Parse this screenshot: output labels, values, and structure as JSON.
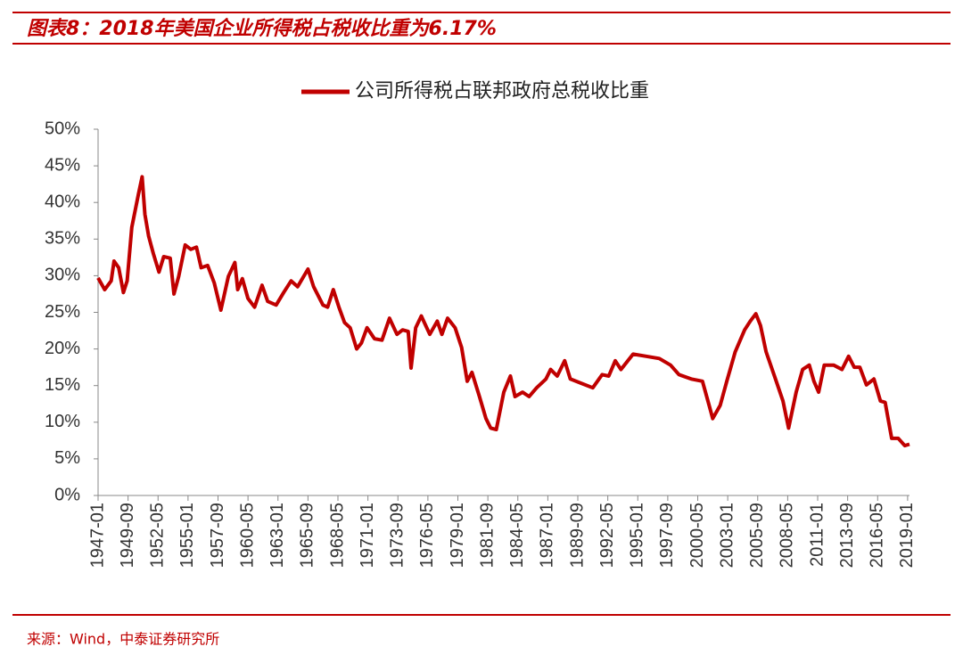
{
  "chart_data": {
    "type": "line",
    "title": "图表8：2018年美国企业所得税占税收比重为6.17%",
    "source": "来源：Wind，中泰证券研究所",
    "legend": "top",
    "x": [
      "1947-01",
      "1947-08",
      "1948-03",
      "1948-06",
      "1948-11",
      "1949-04",
      "1949-08",
      "1950-01",
      "1950-08",
      "1950-12",
      "1951-03",
      "1951-07",
      "1951-12",
      "1952-06",
      "1952-11",
      "1953-06",
      "1953-10",
      "1954-03",
      "1954-10",
      "1955-04",
      "1955-10",
      "1956-03",
      "1956-10",
      "1957-05",
      "1957-12",
      "1958-08",
      "1959-03",
      "1959-06",
      "1959-11",
      "1960-05",
      "1960-12",
      "1961-08",
      "1962-02",
      "1962-11",
      "1963-07",
      "1964-03",
      "1964-10",
      "1965-09",
      "1966-03",
      "1967-01",
      "1967-06",
      "1967-12",
      "1968-06",
      "1968-12",
      "1969-06",
      "1970-01",
      "1970-06",
      "1970-12",
      "1971-08",
      "1972-04",
      "1972-12",
      "1973-08",
      "1974-02",
      "1974-08",
      "1974-11",
      "1975-04",
      "1975-10",
      "1976-07",
      "1977-03",
      "1977-08",
      "1978-02",
      "1978-10",
      "1979-05",
      "1979-11",
      "1980-04",
      "1980-12",
      "1981-07",
      "1981-12",
      "1982-06",
      "1983-02",
      "1983-09",
      "1984-02",
      "1984-10",
      "1985-05",
      "1986-01",
      "1986-11",
      "1987-04",
      "1987-11",
      "1988-07",
      "1989-01",
      "1990-01",
      "1991-01",
      "1991-11",
      "1992-06",
      "1993-01",
      "1993-07",
      "1994-08",
      "1995-10",
      "1996-12",
      "1997-12",
      "1998-09",
      "1999-10",
      "2000-10",
      "2001-06",
      "2001-09",
      "2002-05",
      "2002-12",
      "2003-09",
      "2004-07",
      "2005-01",
      "2005-07",
      "2005-12",
      "2006-06",
      "2007-04",
      "2007-12",
      "2008-06",
      "2009-02",
      "2009-09",
      "2010-04",
      "2010-09",
      "2011-02",
      "2011-08",
      "2012-06",
      "2013-03",
      "2013-10",
      "2014-04",
      "2014-10",
      "2015-05",
      "2016-01",
      "2016-08",
      "2017-01",
      "2017-08",
      "2018-03",
      "2018-10",
      "2019-03"
    ],
    "series": [
      {
        "name": "公司所得税占联邦政府总税收比重",
        "color": "#c00000",
        "values": [
          29.7,
          28.1,
          29.3,
          32,
          31.1,
          27.7,
          29.3,
          36.6,
          41.1,
          43.5,
          38.4,
          35.4,
          33,
          30.5,
          32.6,
          32.4,
          27.5,
          29.9,
          34.2,
          33.6,
          33.9,
          31.1,
          31.4,
          29,
          25.3,
          29.9,
          31.8,
          28.1,
          29.6,
          26.9,
          25.7,
          28.7,
          26.5,
          26,
          27.7,
          29.3,
          28.5,
          30.9,
          28.5,
          26,
          25.7,
          28.1,
          25.7,
          23.6,
          22.9,
          20,
          20.8,
          22.9,
          21.4,
          21.2,
          24.2,
          22,
          22.6,
          22.4,
          17.4,
          22.9,
          24.5,
          22,
          23.8,
          22,
          24.2,
          22.9,
          20.2,
          15.6,
          16.8,
          13.5,
          10.5,
          9.2,
          9,
          14.1,
          16.3,
          13.5,
          14.1,
          13.5,
          14.7,
          15.9,
          17.2,
          16.3,
          18.4,
          15.9,
          15.3,
          14.7,
          16.5,
          16.3,
          18.4,
          17.2,
          19.3,
          19,
          18.7,
          17.8,
          16.5,
          15.9,
          15.6,
          11.9,
          10.5,
          12.3,
          15.6,
          19.6,
          22.6,
          23.8,
          24.8,
          23.2,
          19.6,
          15.9,
          12.9,
          9.2,
          14.1,
          17.2,
          17.8,
          15.6,
          14.1,
          17.8,
          17.8,
          17.2,
          19,
          17.5,
          17.5,
          15.1,
          15.9,
          12.9,
          12.7,
          7.8,
          7.8,
          6.8,
          7
        ]
      }
    ],
    "xlim": [
      "1947-01",
      "2019-03"
    ],
    "xticks": [
      "1947-01",
      "1949-09",
      "1952-05",
      "1955-01",
      "1957-09",
      "1960-05",
      "1963-01",
      "1965-09",
      "1968-05",
      "1971-01",
      "1973-09",
      "1976-05",
      "1979-01",
      "1981-09",
      "1984-05",
      "1987-01",
      "1989-09",
      "1992-05",
      "1995-01",
      "1997-09",
      "2000-05",
      "2003-01",
      "2005-09",
      "2008-05",
      "2011-01",
      "2013-09",
      "2016-05",
      "2019-01"
    ],
    "ylim": [
      0,
      50
    ],
    "yticks": [
      {
        "value": 0,
        "label": "0%"
      },
      {
        "value": 5,
        "label": "5%"
      },
      {
        "value": 10,
        "label": "10%"
      },
      {
        "value": 15,
        "label": "15%"
      },
      {
        "value": 20,
        "label": "20%"
      },
      {
        "value": 25,
        "label": "25%"
      },
      {
        "value": 30,
        "label": "30%"
      },
      {
        "value": 35,
        "label": "35%"
      },
      {
        "value": 40,
        "label": "40%"
      },
      {
        "value": 45,
        "label": "45%"
      },
      {
        "value": 50,
        "label": "50%"
      }
    ],
    "grid": false
  }
}
